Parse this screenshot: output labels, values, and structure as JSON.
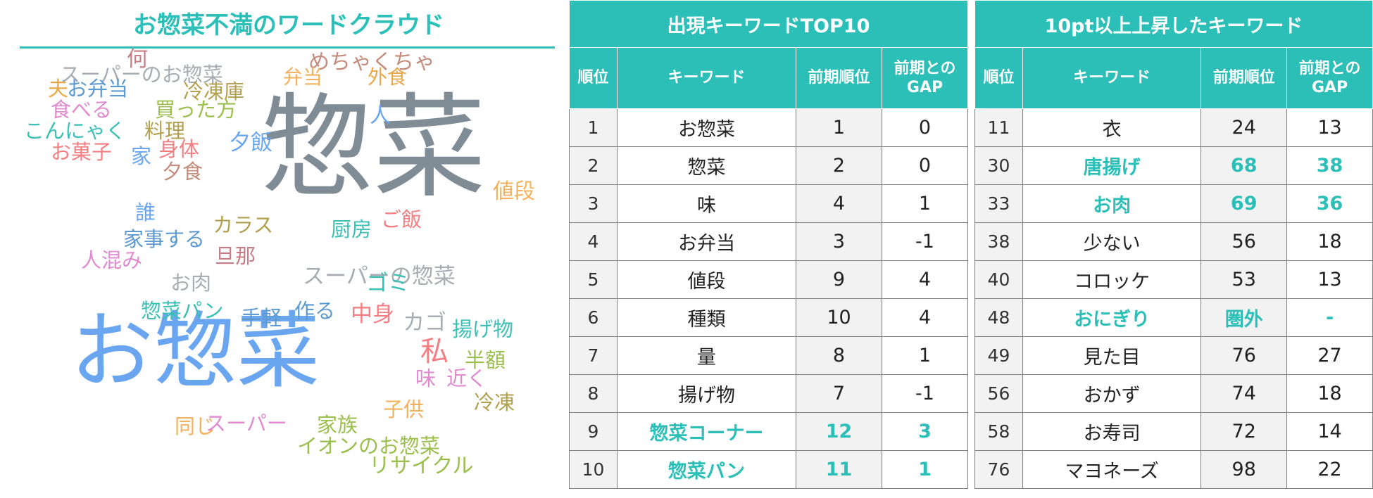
{
  "cloud": {
    "title": "お惣菜不満のワードクラウド",
    "words": [
      {
        "text": "惣菜",
        "color": "#7f8c95"
      },
      {
        "text": "お惣菜",
        "color": "#6aa6f0"
      },
      {
        "text": "スーパーのお惣菜",
        "color": "#a7adb2"
      },
      {
        "text": "何",
        "color": "#c77c86"
      },
      {
        "text": "めちゃくちゃ",
        "color": "#c48c7c"
      },
      {
        "text": "弁当",
        "color": "#f2b15c"
      },
      {
        "text": "外食",
        "color": "#e9a84a"
      },
      {
        "text": "夫",
        "color": "#e9a84a"
      },
      {
        "text": "お弁当",
        "color": "#5d9ad0"
      },
      {
        "text": "冷凍庫",
        "color": "#b2a04e"
      },
      {
        "text": "食べる",
        "color": "#e08bd0"
      },
      {
        "text": "買った方",
        "color": "#9bbf4c"
      },
      {
        "text": "人",
        "color": "#6aa6f0"
      },
      {
        "text": "こんにゃく",
        "color": "#3cbfb5"
      },
      {
        "text": "料理",
        "color": "#b2a04e"
      },
      {
        "text": "夕飯",
        "color": "#6aa6f0"
      },
      {
        "text": "お菓子",
        "color": "#f47f83"
      },
      {
        "text": "身体",
        "color": "#f47f83"
      },
      {
        "text": "家",
        "color": "#6aa6f0"
      },
      {
        "text": "値段",
        "color": "#f2b15c"
      },
      {
        "text": "夕食",
        "color": "#c48c7c"
      },
      {
        "text": "誰",
        "color": "#6aa6f0"
      },
      {
        "text": "厨房",
        "color": "#3cbfb5"
      },
      {
        "text": "ご飯",
        "color": "#f47f83"
      },
      {
        "text": "カラス",
        "color": "#b2a04e"
      },
      {
        "text": "家事する",
        "color": "#5d9ad0"
      },
      {
        "text": "人混み",
        "color": "#e08bd0"
      },
      {
        "text": "旦那",
        "color": "#c77c86"
      },
      {
        "text": "スーパーの惣菜",
        "color": "#a7adb2"
      },
      {
        "text": "お肉",
        "color": "#a7adb2"
      },
      {
        "text": "ゴミ",
        "color": "#3cbfb5"
      },
      {
        "text": "惣菜パン",
        "color": "#3cbfb5"
      },
      {
        "text": "手軽",
        "color": "#5d9ad0"
      },
      {
        "text": "作る",
        "color": "#5d9ad0"
      },
      {
        "text": "中身",
        "color": "#f47f83"
      },
      {
        "text": "カゴ",
        "color": "#a7adb2"
      },
      {
        "text": "揚げ物",
        "color": "#3cbfb5"
      },
      {
        "text": "私",
        "color": "#f47f83"
      },
      {
        "text": "半額",
        "color": "#9bbf4c"
      },
      {
        "text": "味",
        "color": "#e08bd0"
      },
      {
        "text": "近く",
        "color": "#e08bd0"
      },
      {
        "text": "冷凍",
        "color": "#b2a04e"
      },
      {
        "text": "子供",
        "color": "#f2b15c"
      },
      {
        "text": "同じ",
        "color": "#f2b15c"
      },
      {
        "text": "スーパー",
        "color": "#e08bd0"
      },
      {
        "text": "家族",
        "color": "#9bbf4c"
      },
      {
        "text": "イオンのお惣菜",
        "color": "#9bbf4c"
      },
      {
        "text": "リサイクル",
        "color": "#9bbf4c"
      }
    ]
  },
  "top10": {
    "title": "出現キーワードTOP10",
    "headers": {
      "rank": "順位",
      "keyword": "キーワード",
      "prev_rank": "前期順位",
      "gap": "前期とのGAP"
    },
    "rows": [
      {
        "rank": "1",
        "keyword": "お惣菜",
        "prev": "1",
        "gap": "0",
        "highlight": false
      },
      {
        "rank": "2",
        "keyword": "惣菜",
        "prev": "2",
        "gap": "0",
        "highlight": false
      },
      {
        "rank": "3",
        "keyword": "味",
        "prev": "4",
        "gap": "1",
        "highlight": false
      },
      {
        "rank": "4",
        "keyword": "お弁当",
        "prev": "3",
        "gap": "-1",
        "highlight": false
      },
      {
        "rank": "5",
        "keyword": "値段",
        "prev": "9",
        "gap": "4",
        "highlight": false
      },
      {
        "rank": "6",
        "keyword": "種類",
        "prev": "10",
        "gap": "4",
        "highlight": false
      },
      {
        "rank": "7",
        "keyword": "量",
        "prev": "8",
        "gap": "1",
        "highlight": false
      },
      {
        "rank": "8",
        "keyword": "揚げ物",
        "prev": "7",
        "gap": "-1",
        "highlight": false
      },
      {
        "rank": "9",
        "keyword": "惣菜コーナー",
        "prev": "12",
        "gap": "3",
        "highlight": true
      },
      {
        "rank": "10",
        "keyword": "惣菜パン",
        "prev": "11",
        "gap": "1",
        "highlight": true
      }
    ]
  },
  "rise": {
    "title": "10pt以上上昇したキーワード",
    "headers": {
      "rank": "順位",
      "keyword": "キーワード",
      "prev_rank": "前期順位",
      "gap": "前期とのGAP"
    },
    "rows": [
      {
        "rank": "11",
        "keyword": "衣",
        "prev": "24",
        "gap": "13",
        "highlight": false
      },
      {
        "rank": "30",
        "keyword": "唐揚げ",
        "prev": "68",
        "gap": "38",
        "highlight": true
      },
      {
        "rank": "33",
        "keyword": "お肉",
        "prev": "69",
        "gap": "36",
        "highlight": true
      },
      {
        "rank": "38",
        "keyword": "少ない",
        "prev": "56",
        "gap": "18",
        "highlight": false
      },
      {
        "rank": "40",
        "keyword": "コロッケ",
        "prev": "53",
        "gap": "13",
        "highlight": false
      },
      {
        "rank": "48",
        "keyword": "おにぎり",
        "prev": "圏外",
        "gap": "-",
        "highlight": true
      },
      {
        "rank": "49",
        "keyword": "見た目",
        "prev": "76",
        "gap": "27",
        "highlight": false
      },
      {
        "rank": "56",
        "keyword": "おかず",
        "prev": "74",
        "gap": "18",
        "highlight": false
      },
      {
        "rank": "58",
        "keyword": "お寿司",
        "prev": "72",
        "gap": "14",
        "highlight": false
      },
      {
        "rank": "76",
        "keyword": "マヨネーズ",
        "prev": "98",
        "gap": "22",
        "highlight": false
      }
    ]
  }
}
